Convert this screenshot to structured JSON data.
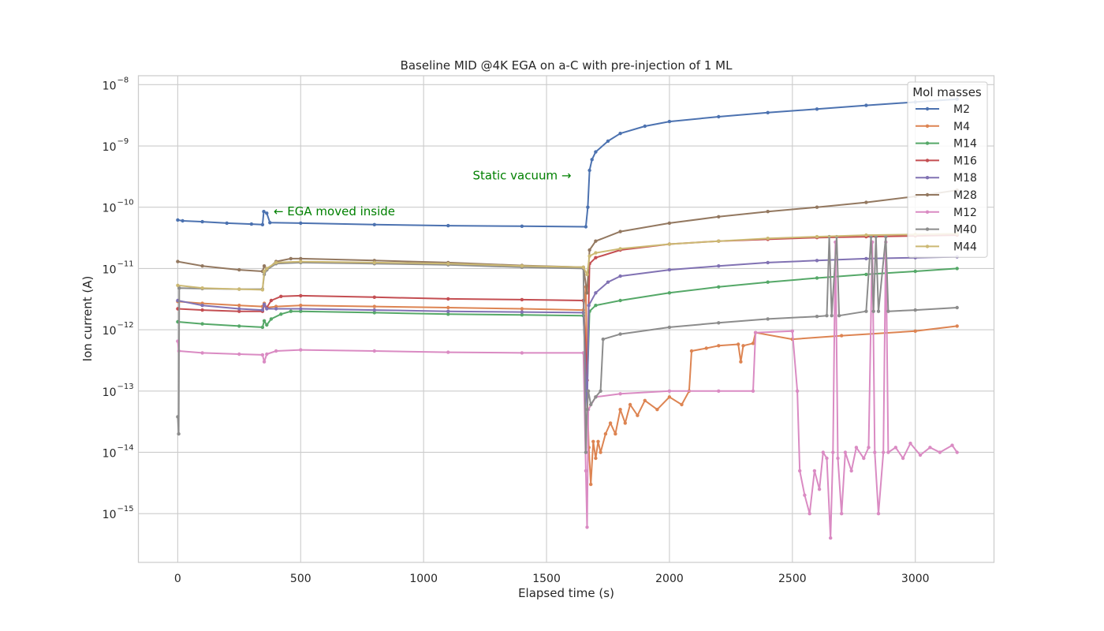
{
  "chart_data": {
    "type": "line",
    "title": "Baseline MID @4K EGA on a-C with pre-injection of 1 ML",
    "xlabel": "Elapsed time (s)",
    "ylabel": "Ion current (A)",
    "yscale": "log",
    "xlim": [
      -160,
      3320
    ],
    "ylim": [
      1.6e-16,
      1.4e-08
    ],
    "x_ticks": [
      0,
      500,
      1000,
      1500,
      2000,
      2500,
      3000
    ],
    "y_tick_exponents": [
      -15,
      -14,
      -13,
      -12,
      -11,
      -10,
      -9,
      -8
    ],
    "grid": true,
    "legend": {
      "title": "Mol masses",
      "placement": "top-right"
    },
    "annotations": [
      {
        "text": "← EGA moved inside",
        "x": 390,
        "y": 8.5e-11
      },
      {
        "text": "Static vacuum →",
        "x": 1200,
        "y": 3.3e-10
      }
    ],
    "series": [
      {
        "name": "M2",
        "color": "#4c72b0",
        "points": [
          [
            0,
            6.2e-11
          ],
          [
            20,
            6e-11
          ],
          [
            100,
            5.8e-11
          ],
          [
            200,
            5.5e-11
          ],
          [
            300,
            5.3e-11
          ],
          [
            345,
            5.2e-11
          ],
          [
            350,
            8.5e-11
          ],
          [
            362,
            8e-11
          ],
          [
            375,
            5.6e-11
          ],
          [
            500,
            5.5e-11
          ],
          [
            800,
            5.2e-11
          ],
          [
            1100,
            5e-11
          ],
          [
            1400,
            4.9e-11
          ],
          [
            1660,
            4.8e-11
          ],
          [
            1668,
            1e-10
          ],
          [
            1675,
            4e-10
          ],
          [
            1685,
            6e-10
          ],
          [
            1700,
            8e-10
          ],
          [
            1750,
            1.2e-09
          ],
          [
            1800,
            1.6e-09
          ],
          [
            1900,
            2.1e-09
          ],
          [
            2000,
            2.5e-09
          ],
          [
            2200,
            3e-09
          ],
          [
            2400,
            3.5e-09
          ],
          [
            2600,
            4e-09
          ],
          [
            2800,
            4.6e-09
          ],
          [
            3000,
            5.2e-09
          ],
          [
            3170,
            5.8e-09
          ]
        ]
      },
      {
        "name": "M4",
        "color": "#dd8452",
        "points": [
          [
            0,
            2.9e-12
          ],
          [
            100,
            2.7e-12
          ],
          [
            250,
            2.5e-12
          ],
          [
            345,
            2.4e-12
          ],
          [
            352,
            2.7e-12
          ],
          [
            362,
            2.3e-12
          ],
          [
            400,
            2.4e-12
          ],
          [
            500,
            2.5e-12
          ],
          [
            800,
            2.4e-12
          ],
          [
            1100,
            2.3e-12
          ],
          [
            1400,
            2.2e-12
          ],
          [
            1650,
            2.1e-12
          ],
          [
            1660,
            5e-12
          ],
          [
            1665,
            1e-13
          ],
          [
            1672,
            1.2e-14
          ],
          [
            1680,
            3e-15
          ],
          [
            1690,
            1.5e-14
          ],
          [
            1700,
            8e-15
          ],
          [
            1710,
            1.5e-14
          ],
          [
            1720,
            1e-14
          ],
          [
            1740,
            2e-14
          ],
          [
            1760,
            3e-14
          ],
          [
            1780,
            2e-14
          ],
          [
            1800,
            5e-14
          ],
          [
            1820,
            3e-14
          ],
          [
            1840,
            6e-14
          ],
          [
            1870,
            4e-14
          ],
          [
            1900,
            7e-14
          ],
          [
            1950,
            5e-14
          ],
          [
            2000,
            8e-14
          ],
          [
            2050,
            6e-14
          ],
          [
            2080,
            1e-13
          ],
          [
            2090,
            4.5e-13
          ],
          [
            2150,
            5e-13
          ],
          [
            2200,
            5.5e-13
          ],
          [
            2280,
            5.8e-13
          ],
          [
            2290,
            3e-13
          ],
          [
            2300,
            5.5e-13
          ],
          [
            2340,
            6e-13
          ],
          [
            2350,
            9e-13
          ],
          [
            2500,
            7e-13
          ],
          [
            2700,
            8e-13
          ],
          [
            3000,
            9.5e-13
          ],
          [
            3170,
            1.15e-12
          ]
        ]
      },
      {
        "name": "M14",
        "color": "#55a868",
        "points": [
          [
            0,
            1.35e-12
          ],
          [
            100,
            1.25e-12
          ],
          [
            250,
            1.15e-12
          ],
          [
            345,
            1.1e-12
          ],
          [
            352,
            1.4e-12
          ],
          [
            362,
            1.2e-12
          ],
          [
            380,
            1.5e-12
          ],
          [
            420,
            1.8e-12
          ],
          [
            460,
            2e-12
          ],
          [
            500,
            2e-12
          ],
          [
            800,
            1.9e-12
          ],
          [
            1100,
            1.8e-12
          ],
          [
            1400,
            1.75e-12
          ],
          [
            1650,
            1.7e-12
          ],
          [
            1665,
            1e-13
          ],
          [
            1675,
            2e-12
          ],
          [
            1700,
            2.5e-12
          ],
          [
            1800,
            3e-12
          ],
          [
            2000,
            4e-12
          ],
          [
            2200,
            5e-12
          ],
          [
            2400,
            6e-12
          ],
          [
            2600,
            7e-12
          ],
          [
            2800,
            8e-12
          ],
          [
            3000,
            9e-12
          ],
          [
            3170,
            1e-11
          ]
        ]
      },
      {
        "name": "M16",
        "color": "#c44e52",
        "points": [
          [
            0,
            2.2e-12
          ],
          [
            100,
            2.1e-12
          ],
          [
            250,
            2e-12
          ],
          [
            345,
            2e-12
          ],
          [
            352,
            2.5e-12
          ],
          [
            362,
            2.3e-12
          ],
          [
            380,
            3e-12
          ],
          [
            420,
            3.5e-12
          ],
          [
            500,
            3.6e-12
          ],
          [
            800,
            3.4e-12
          ],
          [
            1100,
            3.2e-12
          ],
          [
            1400,
            3.1e-12
          ],
          [
            1650,
            3e-12
          ],
          [
            1665,
            1.5e-13
          ],
          [
            1675,
            1.2e-11
          ],
          [
            1700,
            1.5e-11
          ],
          [
            1800,
            2e-11
          ],
          [
            2000,
            2.5e-11
          ],
          [
            2200,
            2.8e-11
          ],
          [
            2400,
            3e-11
          ],
          [
            2600,
            3.2e-11
          ],
          [
            2800,
            3.3e-11
          ],
          [
            3000,
            3.4e-11
          ],
          [
            3170,
            3.5e-11
          ]
        ]
      },
      {
        "name": "M18",
        "color": "#8172b3",
        "points": [
          [
            0,
            3e-12
          ],
          [
            100,
            2.5e-12
          ],
          [
            250,
            2.2e-12
          ],
          [
            345,
            2.1e-12
          ],
          [
            352,
            2.6e-12
          ],
          [
            362,
            2.2e-12
          ],
          [
            400,
            2.2e-12
          ],
          [
            500,
            2.2e-12
          ],
          [
            800,
            2.1e-12
          ],
          [
            1100,
            2e-12
          ],
          [
            1400,
            1.95e-12
          ],
          [
            1650,
            1.9e-12
          ],
          [
            1665,
            5e-14
          ],
          [
            1672,
            2.5e-12
          ],
          [
            1700,
            4e-12
          ],
          [
            1750,
            6e-12
          ],
          [
            1800,
            7.5e-12
          ],
          [
            2000,
            9.5e-12
          ],
          [
            2200,
            1.1e-11
          ],
          [
            2400,
            1.25e-11
          ],
          [
            2600,
            1.35e-11
          ],
          [
            2800,
            1.45e-11
          ],
          [
            3000,
            1.5e-11
          ],
          [
            3170,
            1.55e-11
          ]
        ]
      },
      {
        "name": "M28",
        "color": "#937860",
        "points": [
          [
            0,
            1.3e-11
          ],
          [
            100,
            1.1e-11
          ],
          [
            250,
            9.5e-12
          ],
          [
            345,
            9e-12
          ],
          [
            352,
            1.1e-11
          ],
          [
            362,
            9.5e-12
          ],
          [
            400,
            1.3e-11
          ],
          [
            460,
            1.45e-11
          ],
          [
            500,
            1.45e-11
          ],
          [
            800,
            1.35e-11
          ],
          [
            1100,
            1.25e-11
          ],
          [
            1400,
            1.12e-11
          ],
          [
            1650,
            1.05e-11
          ],
          [
            1665,
            4e-12
          ],
          [
            1675,
            2e-11
          ],
          [
            1700,
            2.8e-11
          ],
          [
            1800,
            4e-11
          ],
          [
            2000,
            5.5e-11
          ],
          [
            2200,
            7e-11
          ],
          [
            2400,
            8.5e-11
          ],
          [
            2600,
            1e-10
          ],
          [
            2800,
            1.2e-10
          ],
          [
            3000,
            1.5e-10
          ],
          [
            3170,
            1.9e-10
          ]
        ]
      },
      {
        "name": "M12",
        "color": "#da8bc3",
        "points": [
          [
            0,
            6.5e-13
          ],
          [
            5,
            4.5e-13
          ],
          [
            100,
            4.2e-13
          ],
          [
            250,
            4e-13
          ],
          [
            345,
            3.9e-13
          ],
          [
            352,
            3e-13
          ],
          [
            362,
            4e-13
          ],
          [
            400,
            4.5e-13
          ],
          [
            500,
            4.7e-13
          ],
          [
            800,
            4.5e-13
          ],
          [
            1100,
            4.3e-13
          ],
          [
            1400,
            4.2e-13
          ],
          [
            1650,
            4.2e-13
          ],
          [
            1660,
            5e-15
          ],
          [
            1665,
            6e-16
          ],
          [
            1670,
            5e-14
          ],
          [
            1700,
            8e-14
          ],
          [
            1800,
            9e-14
          ],
          [
            2000,
            1e-13
          ],
          [
            2200,
            1e-13
          ],
          [
            2340,
            1e-13
          ],
          [
            2350,
            9e-13
          ],
          [
            2500,
            9.5e-13
          ],
          [
            2520,
            1e-13
          ],
          [
            2530,
            5e-15
          ],
          [
            2550,
            2e-15
          ],
          [
            2570,
            1e-15
          ],
          [
            2590,
            5e-15
          ],
          [
            2610,
            2.5e-15
          ],
          [
            2625,
            1e-14
          ],
          [
            2640,
            8e-15
          ],
          [
            2655,
            4e-16
          ],
          [
            2665,
            1e-14
          ],
          [
            2675,
            2.7e-11
          ],
          [
            2685,
            8e-15
          ],
          [
            2700,
            1e-15
          ],
          [
            2715,
            1e-14
          ],
          [
            2740,
            5e-15
          ],
          [
            2760,
            1.2e-14
          ],
          [
            2790,
            8e-15
          ],
          [
            2810,
            1.2e-14
          ],
          [
            2825,
            2.7e-11
          ],
          [
            2835,
            1e-14
          ],
          [
            2850,
            1e-15
          ],
          [
            2870,
            1e-14
          ],
          [
            2880,
            2.7e-11
          ],
          [
            2890,
            1e-14
          ],
          [
            2920,
            1.2e-14
          ],
          [
            2950,
            8e-15
          ],
          [
            2980,
            1.4e-14
          ],
          [
            3020,
            9e-15
          ],
          [
            3060,
            1.2e-14
          ],
          [
            3100,
            1e-14
          ],
          [
            3150,
            1.3e-14
          ],
          [
            3170,
            1e-14
          ]
        ]
      },
      {
        "name": "M40",
        "color": "#8c8c8c",
        "points": [
          [
            0,
            3.8e-14
          ],
          [
            4,
            2e-14
          ],
          [
            6,
            4.8e-12
          ],
          [
            100,
            4.7e-12
          ],
          [
            250,
            4.6e-12
          ],
          [
            345,
            4.6e-12
          ],
          [
            352,
            8e-12
          ],
          [
            362,
            9.5e-12
          ],
          [
            400,
            1.2e-11
          ],
          [
            500,
            1.25e-11
          ],
          [
            800,
            1.2e-11
          ],
          [
            1100,
            1.15e-11
          ],
          [
            1400,
            1.05e-11
          ],
          [
            1650,
            1e-11
          ],
          [
            1660,
            1e-14
          ],
          [
            1665,
            5e-14
          ],
          [
            1670,
            1e-13
          ],
          [
            1680,
            6e-14
          ],
          [
            1700,
            8e-14
          ],
          [
            1720,
            1e-13
          ],
          [
            1730,
            7e-13
          ],
          [
            1800,
            8.5e-13
          ],
          [
            2000,
            1.1e-12
          ],
          [
            2200,
            1.3e-12
          ],
          [
            2400,
            1.5e-12
          ],
          [
            2600,
            1.65e-12
          ],
          [
            2640,
            1.7e-12
          ],
          [
            2650,
            3.3e-11
          ],
          [
            2660,
            1.7e-12
          ],
          [
            2680,
            3.3e-11
          ],
          [
            2690,
            1.7e-12
          ],
          [
            2800,
            2e-12
          ],
          [
            2820,
            3.3e-11
          ],
          [
            2830,
            2e-12
          ],
          [
            2840,
            3.3e-11
          ],
          [
            2850,
            2e-12
          ],
          [
            2880,
            3.3e-11
          ],
          [
            2890,
            2e-12
          ],
          [
            3000,
            2.1e-12
          ],
          [
            3170,
            2.3e-12
          ]
        ]
      },
      {
        "name": "M44",
        "color": "#ccb974",
        "points": [
          [
            0,
            5.3e-12
          ],
          [
            100,
            4.8e-12
          ],
          [
            250,
            4.6e-12
          ],
          [
            345,
            4.5e-12
          ],
          [
            352,
            9e-12
          ],
          [
            362,
            1e-11
          ],
          [
            400,
            1.25e-11
          ],
          [
            500,
            1.3e-11
          ],
          [
            800,
            1.25e-11
          ],
          [
            1100,
            1.2e-11
          ],
          [
            1400,
            1.1e-11
          ],
          [
            1650,
            1.05e-11
          ],
          [
            1665,
            8e-12
          ],
          [
            1675,
            1.6e-11
          ],
          [
            1700,
            1.8e-11
          ],
          [
            1800,
            2.1e-11
          ],
          [
            2000,
            2.5e-11
          ],
          [
            2200,
            2.8e-11
          ],
          [
            2400,
            3.1e-11
          ],
          [
            2600,
            3.3e-11
          ],
          [
            2800,
            3.5e-11
          ],
          [
            3000,
            3.6e-11
          ],
          [
            3170,
            3.7e-11
          ]
        ]
      }
    ]
  }
}
